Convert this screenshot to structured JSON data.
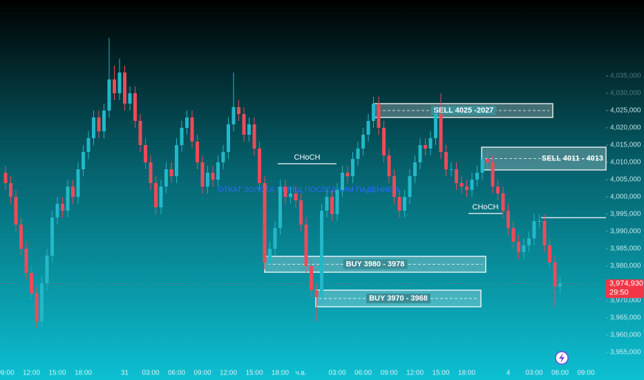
{
  "chart_data": {
    "type": "candlestick",
    "categories": [
      "09:00",
      null,
      null,
      null,
      null,
      "12:00",
      null,
      null,
      null,
      null,
      "15:00",
      null,
      null,
      null,
      null,
      "18:00",
      null,
      null,
      null,
      null,
      null,
      null,
      null,
      "31",
      null,
      null,
      null,
      null,
      "03:00",
      null,
      null,
      null,
      null,
      "06:00",
      null,
      null,
      null,
      null,
      "09:00",
      null,
      null,
      null,
      null,
      "12:00",
      null,
      null,
      null,
      null,
      "15:00",
      null,
      null,
      null,
      null,
      "18:00",
      null,
      null,
      null,
      "ч.в.",
      null,
      null,
      null,
      null,
      null,
      null,
      "03:00",
      null,
      null,
      null,
      null,
      "06:00",
      null,
      null,
      null,
      null,
      "09:00",
      null,
      null,
      null,
      null,
      "12:00",
      null,
      null,
      null,
      null,
      "15:00",
      null,
      null,
      null,
      null,
      "18:00",
      null,
      null,
      null,
      null,
      null,
      null,
      null,
      "4",
      null,
      null,
      null,
      null,
      "03:00",
      null,
      null,
      null,
      null,
      "06:00",
      null,
      null,
      null,
      null,
      "09:00"
    ],
    "open": [
      4007,
      4004,
      4000,
      3992,
      3985,
      3978,
      3972,
      3964,
      3975,
      3983,
      3994,
      3998,
      3996,
      4003,
      4000,
      4008,
      4013,
      4017,
      4023,
      4019,
      4025,
      4034,
      4030,
      4036,
      4027,
      4030,
      4022,
      4015,
      4010,
      4004,
      3997,
      4003,
      4008,
      4006,
      4015,
      4020,
      4023,
      4016,
      4010,
      4003,
      4007,
      4005,
      4010,
      4013,
      4021,
      4026,
      4024,
      4018,
      4021,
      4014,
      4004,
      3981,
      3985,
      3991,
      4003,
      4000,
      4001,
      3999,
      3992,
      3980,
      3973,
      3971,
      3996,
      4000,
      3995,
      4002,
      4007,
      4006,
      4011,
      4014,
      4018,
      4022,
      4027,
      4020,
      4012,
      4006,
      4000,
      3996,
      4000,
      4006,
      4010,
      4015,
      4014,
      4017,
      4024,
      4013,
      4008,
      4008,
      4004,
      4003,
      4002,
      4005,
      4007,
      4011,
      4010,
      4003,
      4001,
      3996,
      3991,
      3987,
      3984,
      3986,
      3988,
      3993,
      3993,
      3986,
      3981,
      3974,
      null,
      null,
      null,
      null,
      null
    ],
    "high": [
      4009,
      4006,
      4002,
      3994,
      3987,
      3980,
      3974,
      3977,
      3985,
      3996,
      4000,
      4000,
      4005,
      4005,
      4010,
      4015,
      4019,
      4025,
      4025,
      4027,
      4046,
      4038,
      4040,
      4038,
      4032,
      4032,
      4024,
      4017,
      4012,
      4006,
      4005,
      4010,
      4010,
      4017,
      4022,
      4025,
      4025,
      4018,
      4012,
      4009,
      4009,
      4012,
      4015,
      4023,
      4036,
      4028,
      4026,
      4023,
      4023,
      4016,
      4006,
      3987,
      3993,
      4005,
      4005,
      4003,
      4003,
      4001,
      3994,
      3982,
      3975,
      3998,
      4002,
      4002,
      4004,
      4009,
      4009,
      4013,
      4016,
      4020,
      4024,
      4029,
      4029,
      4022,
      4014,
      4008,
      4002,
      4002,
      4008,
      4012,
      4017,
      4017,
      4019,
      4026,
      4030,
      4015,
      4010,
      4010,
      4006,
      4005,
      4007,
      4009,
      4013,
      4013,
      4012,
      4005,
      4003,
      3998,
      3993,
      3989,
      3988,
      3990,
      3995,
      3995,
      3995,
      3988,
      3983,
      3977,
      null,
      null,
      null,
      null,
      null
    ],
    "low": [
      4002,
      3998,
      3990,
      3983,
      3976,
      3970,
      3962,
      3962,
      3973,
      3981,
      3992,
      3994,
      3994,
      3998,
      3998,
      4006,
      4011,
      4015,
      4017,
      4017,
      4023,
      4028,
      4028,
      4025,
      4025,
      4020,
      4013,
      4008,
      4002,
      3995,
      3995,
      4001,
      4004,
      4004,
      4013,
      4018,
      4014,
      4008,
      4001,
      4001,
      4003,
      4003,
      4008,
      4011,
      4019,
      4022,
      4016,
      4016,
      4012,
      4002,
      3979,
      3979,
      3983,
      3989,
      3998,
      3998,
      3997,
      3990,
      3978,
      3971,
      3964,
      3969,
      3994,
      3993,
      3993,
      4000,
      4004,
      4004,
      4009,
      4012,
      4016,
      4020,
      4018,
      4010,
      4004,
      3998,
      3994,
      3994,
      3998,
      4004,
      4008,
      4012,
      4012,
      4015,
      4011,
      4006,
      4006,
      4002,
      4001,
      4000,
      4000,
      4003,
      4005,
      4008,
      4001,
      3999,
      3994,
      3989,
      3985,
      3982,
      3982,
      3984,
      3986,
      3991,
      3984,
      3979,
      3968,
      3972,
      null,
      null,
      null,
      null,
      null
    ],
    "close": [
      4004,
      4000,
      3992,
      3985,
      3978,
      3972,
      3964,
      3975,
      3983,
      3994,
      3998,
      3996,
      4003,
      4000,
      4008,
      4013,
      4017,
      4023,
      4019,
      4025,
      4034,
      4030,
      4036,
      4027,
      4030,
      4022,
      4015,
      4010,
      4004,
      3997,
      4003,
      4008,
      4006,
      4015,
      4020,
      4023,
      4016,
      4010,
      4003,
      4007,
      4005,
      4010,
      4013,
      4021,
      4026,
      4024,
      4018,
      4021,
      4014,
      4004,
      3981,
      3985,
      3991,
      4003,
      4000,
      4001,
      3999,
      3992,
      3980,
      3973,
      3971,
      3996,
      4000,
      3995,
      4002,
      4007,
      4006,
      4011,
      4014,
      4018,
      4022,
      4027,
      4020,
      4012,
      4006,
      4000,
      3996,
      4000,
      4006,
      4010,
      4015,
      4014,
      4017,
      4024,
      4013,
      4008,
      4008,
      4004,
      4003,
      4002,
      4005,
      4007,
      4011,
      4010,
      4003,
      4001,
      3996,
      3991,
      3987,
      3984,
      3986,
      3988,
      3993,
      3993,
      3986,
      3981,
      3974,
      3975,
      null,
      null,
      null,
      null,
      null
    ],
    "up_color": "#22b8c8",
    "down_color": "#ee4a5a",
    "ylim": [
      3947,
      4057
    ],
    "yticks": [
      {
        "value": 3955,
        "label": "3,955,000"
      },
      {
        "value": 3960,
        "label": "3,960,000"
      },
      {
        "value": 3965,
        "label": "3,965,000"
      },
      {
        "value": 3970,
        "label": "3,970,000"
      },
      {
        "value": 3975,
        "label": "3,975,000"
      },
      {
        "value": 3980,
        "label": "3,980,000"
      },
      {
        "value": 3985,
        "label": "3,985,000"
      },
      {
        "value": 3990,
        "label": "3,990,000"
      },
      {
        "value": 3995,
        "label": "3,995,000"
      },
      {
        "value": 4000,
        "label": "4,000,000"
      },
      {
        "value": 4005,
        "label": "4,005,000"
      },
      {
        "value": 4010,
        "label": "4,010,000"
      },
      {
        "value": 4015,
        "label": "4,015,000"
      },
      {
        "value": 4020,
        "label": "4,020,000"
      },
      {
        "value": 4025,
        "label": "4,025,000"
      },
      {
        "value": 4030,
        "label": "4,030,000"
      },
      {
        "value": 4035,
        "label": "4,035,000"
      }
    ],
    "zones": [
      {
        "label": "SELL 4025 -2027",
        "top": 4027,
        "bottom": 4023
      },
      {
        "label": "SELL 4011 - 4013",
        "top": 4014.4,
        "bottom": 4007.8
      },
      {
        "label": "BUY 3980 - 3978",
        "top": 3982.8,
        "bottom": 3978.2
      },
      {
        "label": "BUY 3970 - 3968",
        "top": 3973,
        "bottom": 3968.2
      }
    ],
    "levels": [
      {
        "label": "CHoCH",
        "value": 4009.6
      },
      {
        "label": "CHoCH",
        "value": 3995.2
      },
      {
        "value": 3994
      }
    ],
    "note": "ОТКАТ ЗОЛОТА ПЕРЕД ПОСЛЕДНИМ ПАДЕНИЕМ",
    "price_tag": {
      "value": 3974.93,
      "label": "3,974,930",
      "countdown": "29:50"
    }
  }
}
